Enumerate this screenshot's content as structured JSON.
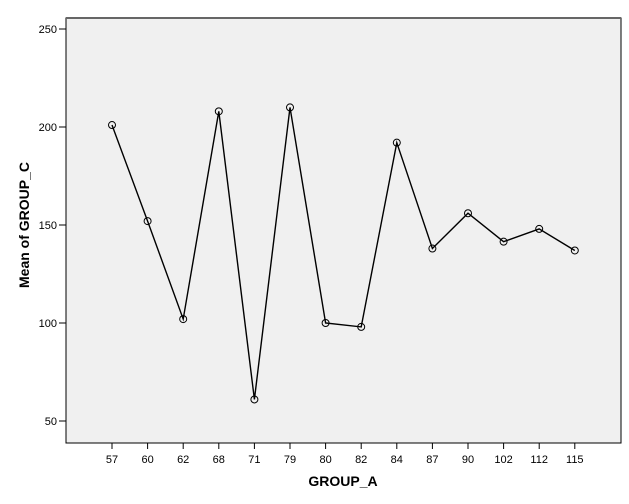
{
  "chart_data": {
    "type": "line",
    "title": "",
    "xlabel": "GROUP_A",
    "ylabel": "Mean of GROUP_C",
    "categories": [
      "57",
      "60",
      "62",
      "68",
      "71",
      "79",
      "80",
      "82",
      "84",
      "87",
      "90",
      "102",
      "112",
      "115"
    ],
    "series": [
      {
        "name": "Mean of GROUP_C",
        "values": [
          201,
          152,
          102,
          208,
          61,
          210,
          100,
          98,
          192,
          138,
          156,
          141.5,
          148,
          137
        ]
      }
    ],
    "ylim": [
      45,
      257
    ],
    "yticks": [
      50,
      100,
      150,
      200,
      250
    ],
    "grid": false,
    "legend": "none",
    "markers": "open-circle",
    "colors": {
      "plot_background": "#f0f0f0",
      "line": "#000000",
      "frame": "#000000"
    }
  }
}
